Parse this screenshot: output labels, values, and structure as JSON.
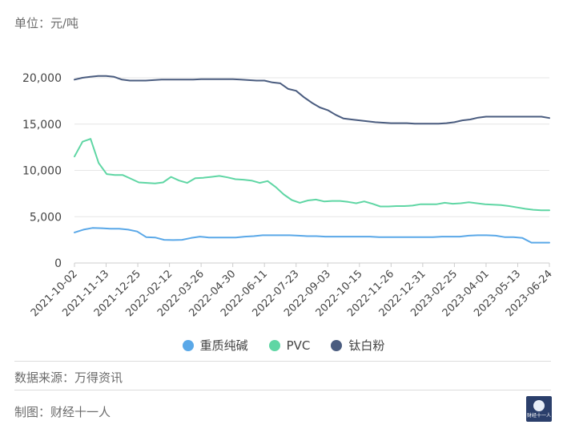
{
  "unit_label": "单位：元/吨",
  "source_label": "数据来源：万得资讯",
  "maker_label": "制图：财经十一人",
  "logo": {
    "text": "财经十一人",
    "icon": "globe-logo-icon"
  },
  "colors": {
    "重质纯碱": "#5aa8e8",
    "PVC": "#5fd6a4",
    "钛白粉": "#4a5c7f"
  },
  "chart_data": {
    "type": "line",
    "title": "",
    "xlabel": "",
    "ylabel": "",
    "ylim": [
      0,
      20000
    ],
    "yticks": [
      "0",
      "5,000",
      "10,000",
      "15,000",
      "20,000"
    ],
    "ytick_values": [
      0,
      5000,
      10000,
      15000,
      20000
    ],
    "x_tick_labels": [
      "2021-10-02",
      "2021-11-13",
      "2021-12-25",
      "2022-02-12",
      "2022-03-26",
      "2022-04-30",
      "2022-06-11",
      "2022-07-23",
      "2022-09-03",
      "2022-10-15",
      "2022-11-26",
      "2022-12-31",
      "2023-02-25",
      "2023-04-01",
      "2023-05-13",
      "2023-06-24"
    ],
    "grid": true,
    "legend_position": "bottom",
    "series": [
      {
        "name": "重质纯碱",
        "values": [
          3300,
          3600,
          3780,
          3760,
          3700,
          3700,
          3600,
          3400,
          2800,
          2750,
          2500,
          2480,
          2500,
          2700,
          2850,
          2750,
          2750,
          2750,
          2750,
          2850,
          2900,
          3000,
          3000,
          3000,
          3000,
          2950,
          2900,
          2900,
          2850,
          2850,
          2850,
          2850,
          2850,
          2850,
          2800,
          2800,
          2800,
          2800,
          2800,
          2800,
          2800,
          2850,
          2850,
          2850,
          2950,
          3000,
          3000,
          2950,
          2800,
          2800,
          2700,
          2200,
          2200,
          2200
        ]
      },
      {
        "name": "PVC",
        "values": [
          11500,
          13100,
          13400,
          10800,
          9600,
          9500,
          9500,
          9100,
          8700,
          8650,
          8600,
          8700,
          9300,
          8900,
          8650,
          9150,
          9200,
          9300,
          9400,
          9250,
          9050,
          9000,
          8900,
          8650,
          8850,
          8200,
          7400,
          6800,
          6500,
          6750,
          6850,
          6650,
          6700,
          6700,
          6600,
          6450,
          6650,
          6400,
          6100,
          6100,
          6150,
          6150,
          6200,
          6350,
          6350,
          6350,
          6500,
          6400,
          6450,
          6550,
          6450,
          6350,
          6300,
          6250,
          6150,
          6000,
          5850,
          5750,
          5700,
          5700
        ]
      },
      {
        "name": "钛白粉",
        "values": [
          19800,
          20000,
          20100,
          20200,
          20200,
          20100,
          19800,
          19700,
          19700,
          19700,
          19750,
          19800,
          19800,
          19800,
          19800,
          19800,
          19850,
          19850,
          19850,
          19850,
          19850,
          19800,
          19750,
          19700,
          19700,
          19500,
          19400,
          18800,
          18600,
          17900,
          17300,
          16800,
          16500,
          16000,
          15600,
          15500,
          15400,
          15300,
          15200,
          15150,
          15100,
          15100,
          15100,
          15050,
          15050,
          15050,
          15050,
          15100,
          15200,
          15400,
          15500,
          15700,
          15800,
          15800,
          15800,
          15800,
          15800,
          15800,
          15800,
          15800,
          15650
        ]
      }
    ]
  }
}
